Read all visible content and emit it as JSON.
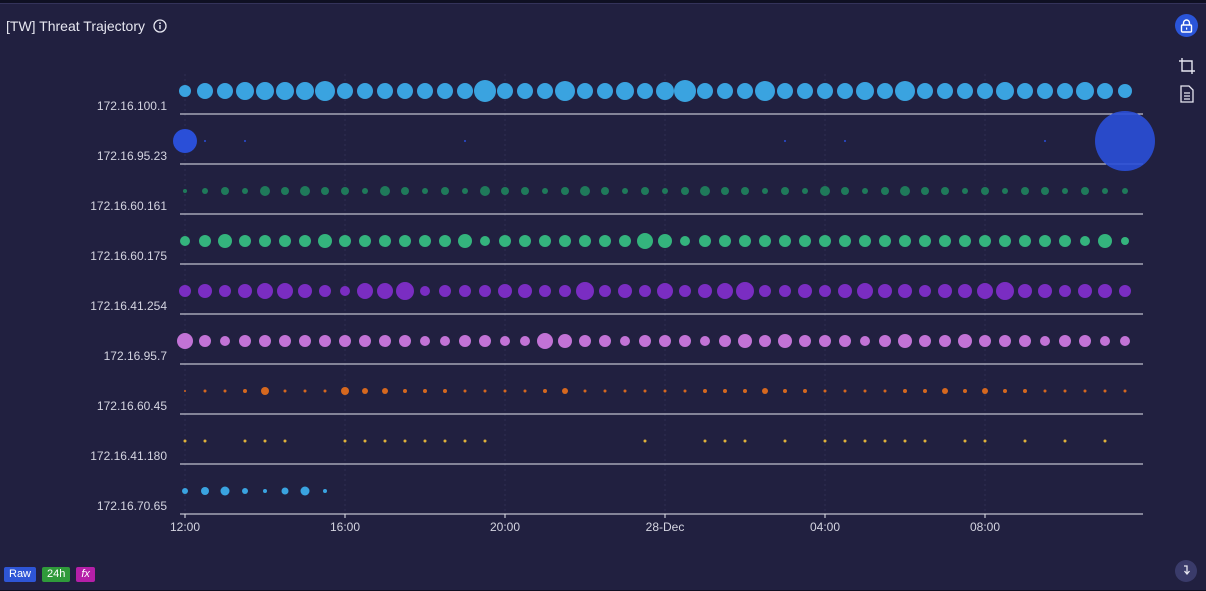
{
  "header": {
    "title": "[TW] Threat Trajectory",
    "info_icon": "info-icon",
    "lock_icon": "lock-icon"
  },
  "toolbar": {
    "crop_icon": "crop-icon",
    "document_icon": "document-icon"
  },
  "footer": {
    "badges": [
      {
        "label": "Raw",
        "color": "#2e55d6"
      },
      {
        "label": "24h",
        "color": "#2f9a3a"
      },
      {
        "label": "fx",
        "color": "#b51fa8"
      }
    ],
    "download_icon": "download-icon"
  },
  "chart_data": {
    "type": "scatter",
    "subtype": "bubble-timeline",
    "x_ticks": [
      "12:00",
      "16:00",
      "20:00",
      "28-Dec",
      "04:00",
      "08:00"
    ],
    "x_start_label": "12:00",
    "x_step": "30 min",
    "x_count": 48,
    "grid": true,
    "rows": [
      {
        "label": "172.16.100.1",
        "color": "#3aa3e0",
        "sizes": [
          6,
          8,
          8,
          9,
          9,
          9,
          9,
          10,
          8,
          8,
          8,
          8,
          8,
          8,
          8,
          11,
          8,
          8,
          8,
          10,
          8,
          8,
          9,
          8,
          9,
          11,
          8,
          8,
          8,
          10,
          8,
          8,
          8,
          8,
          9,
          8,
          10,
          8,
          8,
          8,
          8,
          9,
          8,
          8,
          8,
          9,
          8,
          7
        ]
      },
      {
        "label": "172.16.95.23",
        "color": "#2a4fd8",
        "sizes": [
          12,
          1,
          0,
          1,
          0,
          0,
          0,
          0,
          0,
          0,
          0,
          0,
          0,
          0,
          1,
          0,
          0,
          0,
          0,
          0,
          0,
          0,
          0,
          0,
          0,
          0,
          0,
          0,
          0,
          0,
          1,
          0,
          0,
          1,
          0,
          0,
          0,
          0,
          0,
          0,
          0,
          0,
          0,
          1,
          0,
          0,
          0,
          30
        ]
      },
      {
        "label": "172.16.60.161",
        "color": "#1f7a5a",
        "sizes": [
          2,
          3,
          4,
          3,
          5,
          4,
          5,
          4,
          4,
          3,
          5,
          4,
          3,
          4,
          3,
          5,
          4,
          4,
          3,
          4,
          5,
          4,
          3,
          4,
          3,
          4,
          5,
          4,
          4,
          3,
          4,
          3,
          5,
          4,
          3,
          4,
          5,
          4,
          4,
          3,
          4,
          3,
          4,
          4,
          3,
          4,
          3,
          3
        ]
      },
      {
        "label": "172.16.60.175",
        "color": "#34b47d",
        "sizes": [
          5,
          6,
          7,
          6,
          6,
          6,
          6,
          7,
          6,
          6,
          6,
          6,
          6,
          6,
          7,
          5,
          6,
          6,
          6,
          6,
          6,
          6,
          6,
          8,
          7,
          5,
          6,
          6,
          6,
          6,
          6,
          6,
          6,
          6,
          6,
          6,
          6,
          6,
          6,
          6,
          6,
          6,
          6,
          6,
          6,
          5,
          7,
          4
        ]
      },
      {
        "label": "172.16.41.254",
        "color": "#7a2dc2",
        "sizes": [
          6,
          7,
          6,
          7,
          8,
          8,
          7,
          6,
          5,
          8,
          8,
          9,
          5,
          6,
          6,
          6,
          7,
          7,
          6,
          6,
          9,
          6,
          7,
          6,
          8,
          6,
          7,
          8,
          9,
          6,
          6,
          7,
          6,
          7,
          8,
          7,
          7,
          6,
          7,
          7,
          8,
          9,
          7,
          7,
          6,
          7,
          7,
          6
        ]
      },
      {
        "label": "172.16.95.7",
        "color": "#c273d6",
        "sizes": [
          8,
          6,
          5,
          6,
          6,
          6,
          6,
          6,
          6,
          6,
          6,
          6,
          5,
          5,
          6,
          6,
          5,
          5,
          8,
          7,
          6,
          6,
          5,
          6,
          6,
          6,
          5,
          6,
          7,
          6,
          7,
          6,
          6,
          6,
          5,
          6,
          7,
          6,
          6,
          7,
          6,
          6,
          6,
          5,
          6,
          6,
          5,
          5
        ]
      },
      {
        "label": "172.16.60.45",
        "color": "#d6681f",
        "sizes": [
          1,
          1.5,
          1.5,
          2,
          4,
          1.5,
          1.5,
          1.5,
          4,
          3,
          3,
          2,
          2,
          2,
          1.5,
          1.5,
          1.5,
          1.5,
          2,
          3,
          1.5,
          1.5,
          1.5,
          1.5,
          1.5,
          1.5,
          2,
          2,
          2,
          3,
          2,
          2,
          1.5,
          1.5,
          1.5,
          1.5,
          2,
          2,
          3,
          2,
          3,
          2,
          2,
          1.5,
          1.5,
          1.5,
          1.5,
          1.5
        ]
      },
      {
        "label": "172.16.41.180",
        "color": "#e0b23a",
        "sizes": [
          1.5,
          1.5,
          0,
          1.5,
          1.5,
          1.5,
          0,
          0,
          1.5,
          1.5,
          1.5,
          1.5,
          1.5,
          1.5,
          1.5,
          1.5,
          0,
          0,
          0,
          0,
          0,
          0,
          0,
          1.5,
          0,
          0,
          1.5,
          1.5,
          1.5,
          0,
          1.5,
          0,
          1.5,
          1.5,
          1.5,
          1.5,
          1.5,
          1.5,
          0,
          1.5,
          1.5,
          0,
          1.5,
          0,
          1.5,
          0,
          1.5,
          0
        ]
      },
      {
        "label": "172.16.70.65",
        "color": "#3aa3e0",
        "sizes": [
          3,
          4,
          4.5,
          3,
          2,
          3.5,
          4.5,
          2,
          0,
          0,
          0,
          0,
          0,
          0,
          0,
          0,
          0,
          0,
          0,
          0,
          0,
          0,
          0,
          0,
          0,
          0,
          0,
          0,
          0,
          0,
          0,
          0,
          0,
          0,
          0,
          0,
          0,
          0,
          0,
          0,
          0,
          0,
          0,
          0,
          0,
          0,
          0,
          0
        ]
      }
    ]
  }
}
